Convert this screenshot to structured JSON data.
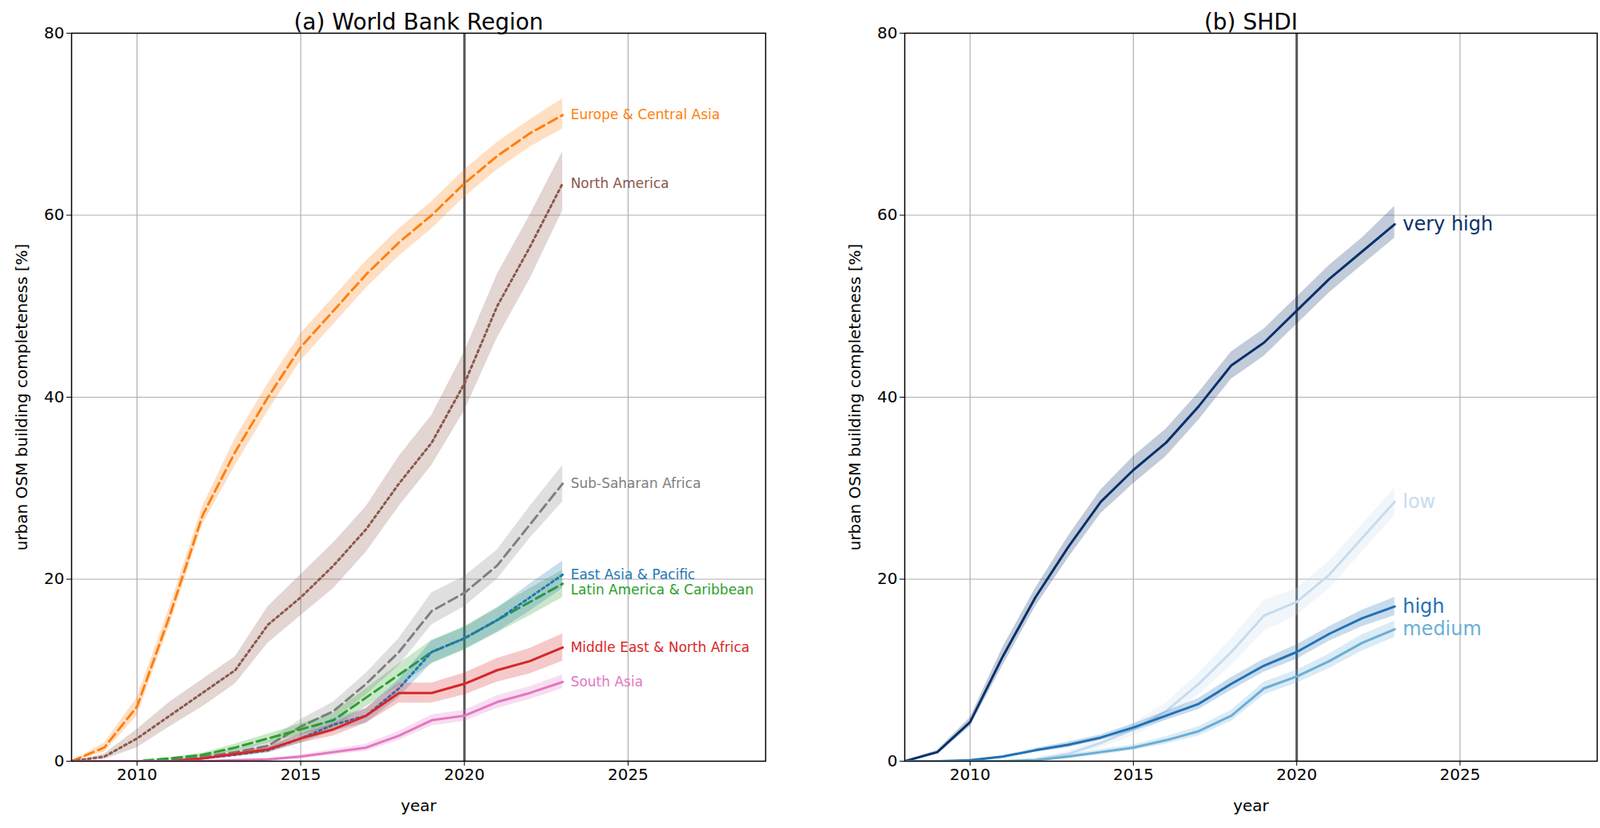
{
  "chart_data": [
    {
      "type": "line",
      "title": "(a) World Bank Region",
      "x_label": "year",
      "y_label": "urban OSM building completeness [%]",
      "x": [
        2008,
        2009,
        2010,
        2011,
        2012,
        2013,
        2014,
        2015,
        2016,
        2017,
        2018,
        2019,
        2020,
        2021,
        2022,
        2023
      ],
      "xlim": [
        2008,
        2029.2
      ],
      "ylim": [
        0,
        80
      ],
      "xticks": [
        2010,
        2015,
        2020,
        2025
      ],
      "yticks": [
        0,
        20,
        40,
        60,
        80
      ],
      "grid": true,
      "reference_line_x": 2020,
      "series": [
        {
          "name": "Europe & Central Asia",
          "color": "#ff7f0e",
          "line_style": "dashed",
          "values": [
            0,
            1.5,
            6,
            16,
            27,
            34,
            40,
            45.5,
            49.5,
            53.5,
            57,
            60,
            63.5,
            66.5,
            69,
            71
          ],
          "lower": [
            0,
            1,
            5,
            15,
            26,
            32.5,
            38.5,
            44,
            48,
            52,
            55.5,
            58.5,
            62,
            65,
            67.5,
            69.5
          ],
          "upper": [
            0,
            2,
            7,
            17,
            28,
            35.5,
            41.5,
            47,
            51,
            55,
            58.5,
            61.5,
            65,
            68,
            70.5,
            72.8
          ]
        },
        {
          "name": "North America",
          "color": "#8c564b",
          "line_style": "dotted",
          "values": [
            0,
            0.5,
            2.5,
            5,
            7.5,
            10,
            15,
            18,
            21.5,
            25.5,
            30.5,
            35,
            41.5,
            50,
            56.5,
            63.5
          ],
          "lower": [
            0,
            0.2,
            1.5,
            3.8,
            6,
            8.5,
            13,
            16,
            19,
            23,
            28,
            32.5,
            38.5,
            46.5,
            53,
            60.5
          ],
          "upper": [
            0,
            0.8,
            3.5,
            6.5,
            9,
            11.5,
            17,
            20.5,
            24,
            28,
            33.5,
            38,
            45,
            53.5,
            60,
            67
          ]
        },
        {
          "name": "Sub-Saharan Africa",
          "color": "#7f7f7f",
          "line_style": "dashed",
          "values": [
            0,
            0,
            0,
            0.1,
            0.5,
            1,
            1.7,
            3.8,
            5.5,
            8.5,
            12,
            16.5,
            18.5,
            21.5,
            26,
            30.5
          ],
          "lower": [
            0,
            0,
            0,
            0,
            0.3,
            0.7,
            1.2,
            3,
            4.5,
            7.3,
            10.5,
            15,
            17,
            20,
            24.5,
            28.5
          ],
          "upper": [
            0,
            0,
            0,
            0.2,
            0.7,
            1.3,
            2.2,
            4.6,
            6.5,
            9.7,
            13.5,
            18.5,
            20.3,
            23.2,
            28,
            32.5
          ]
        },
        {
          "name": "Latin America & Caribbean",
          "color": "#2ca02c",
          "line_style": "dashed",
          "values": [
            0,
            0,
            0,
            0.3,
            0.7,
            1.5,
            2.5,
            3.5,
            4.5,
            7,
            9.5,
            12,
            13.5,
            15.5,
            17.5,
            19.5
          ],
          "lower": [
            0,
            0,
            0,
            0.2,
            0.5,
            1.1,
            2,
            2.9,
            3.7,
            6,
            8.3,
            10.7,
            12.2,
            14.1,
            16,
            18
          ],
          "upper": [
            0,
            0,
            0,
            0.4,
            0.9,
            1.9,
            3,
            4.1,
            5.3,
            8,
            10.7,
            13.3,
            14.8,
            16.9,
            19,
            21
          ]
        },
        {
          "name": "East Asia & Pacific",
          "color": "#1f77b4",
          "line_style": "dotted",
          "values": [
            0,
            0,
            0,
            0,
            0.3,
            0.7,
            1.2,
            2.5,
            4,
            5,
            8,
            12,
            13.5,
            15.5,
            18,
            20.5
          ],
          "lower": [
            0,
            0,
            0,
            0,
            0.2,
            0.5,
            0.9,
            2,
            3.3,
            4.2,
            7,
            10.8,
            12.3,
            14.2,
            16.5,
            19
          ],
          "upper": [
            0,
            0,
            0,
            0,
            0.4,
            0.9,
            1.5,
            3,
            4.7,
            5.8,
            9,
            13.2,
            14.7,
            16.8,
            19.5,
            22
          ]
        },
        {
          "name": "Middle East & North Africa",
          "color": "#d62728",
          "line_style": "solid",
          "values": [
            0,
            0,
            0,
            0,
            0.3,
            0.8,
            1.3,
            2.5,
            3.5,
            5,
            7.5,
            7.5,
            8.5,
            10,
            11,
            12.5
          ],
          "lower": [
            0,
            0,
            0,
            0,
            0.2,
            0.6,
            1,
            2,
            2.8,
            4.2,
            6.4,
            6.4,
            7.3,
            8.7,
            9.6,
            11
          ],
          "upper": [
            0,
            0,
            0,
            0,
            0.4,
            1,
            1.6,
            3,
            4.2,
            5.8,
            8.6,
            8.6,
            9.7,
            11.3,
            12.4,
            14
          ]
        },
        {
          "name": "South Asia",
          "color": "#e377c2",
          "line_style": "solid",
          "values": [
            0,
            0,
            0,
            0,
            0,
            0.1,
            0.2,
            0.5,
            1,
            1.5,
            2.8,
            4.5,
            5,
            6.5,
            7.5,
            8.7
          ],
          "lower": [
            0,
            0,
            0,
            0,
            0,
            0,
            0.1,
            0.3,
            0.7,
            1.1,
            2.3,
            3.9,
            4.4,
            5.8,
            6.8,
            8
          ],
          "upper": [
            0,
            0,
            0,
            0,
            0,
            0.2,
            0.3,
            0.7,
            1.3,
            1.9,
            3.3,
            5.1,
            5.6,
            7.2,
            8.2,
            9.5
          ]
        }
      ]
    },
    {
      "type": "line",
      "title": "(b) SHDI",
      "x_label": "year",
      "y_label": "urban OSM building completeness [%]",
      "x": [
        2008,
        2009,
        2010,
        2011,
        2012,
        2013,
        2014,
        2015,
        2016,
        2017,
        2018,
        2019,
        2020,
        2021,
        2022,
        2023
      ],
      "xlim": [
        2008,
        2029.2
      ],
      "ylim": [
        0,
        80
      ],
      "xticks": [
        2010,
        2015,
        2020,
        2025
      ],
      "yticks": [
        0,
        20,
        40,
        60,
        80
      ],
      "grid": true,
      "reference_line_x": 2020,
      "series": [
        {
          "name": "very high",
          "color": "#08306b",
          "line_style": "solid",
          "values": [
            0,
            1,
            4.3,
            11.5,
            18,
            23.5,
            28.5,
            32,
            35,
            39,
            43.5,
            46,
            49.5,
            53,
            56,
            59
          ],
          "lower": [
            0,
            0.8,
            3.8,
            10.5,
            17,
            22.3,
            27.2,
            30.5,
            33.5,
            37.5,
            42,
            44.5,
            48,
            51.5,
            54.5,
            57.5
          ],
          "upper": [
            0,
            1.2,
            4.8,
            12.5,
            19,
            24.7,
            29.8,
            33.5,
            36.5,
            40.5,
            45,
            47.5,
            51,
            54.5,
            57.5,
            61
          ]
        },
        {
          "name": "low",
          "color": "#c6dbef",
          "line_style": "solid",
          "values": [
            0,
            0,
            0,
            0,
            0.2,
            0.8,
            2,
            3.5,
            5.5,
            8.5,
            12,
            16,
            17.5,
            20.5,
            24.5,
            28.5
          ],
          "lower": [
            0,
            0,
            0,
            0,
            0.1,
            0.5,
            1.5,
            2.8,
            4.6,
            7.3,
            10.5,
            14.3,
            16,
            19,
            23,
            27
          ],
          "upper": [
            0,
            0,
            0,
            0,
            0.3,
            1.1,
            2.5,
            4.2,
            6.4,
            9.7,
            13.5,
            17.7,
            19,
            22,
            26,
            30
          ]
        },
        {
          "name": "high",
          "color": "#2171b5",
          "line_style": "solid",
          "values": [
            0,
            0,
            0.1,
            0.5,
            1.2,
            1.8,
            2.6,
            3.7,
            5,
            6.3,
            8.5,
            10.5,
            12,
            14,
            15.7,
            17
          ],
          "lower": [
            0,
            0,
            0.05,
            0.4,
            1,
            1.5,
            2.3,
            3.3,
            4.5,
            5.7,
            7.8,
            9.8,
            11.2,
            13.2,
            14.8,
            16
          ],
          "upper": [
            0,
            0,
            0.15,
            0.6,
            1.4,
            2.1,
            2.9,
            4.1,
            5.5,
            6.9,
            9.2,
            11.2,
            12.8,
            14.8,
            16.6,
            18
          ]
        },
        {
          "name": "medium",
          "color": "#6baed6",
          "line_style": "solid",
          "values": [
            0,
            0,
            0,
            0,
            0.1,
            0.5,
            1,
            1.5,
            2.3,
            3.3,
            5,
            8,
            9.3,
            11,
            13,
            14.5
          ],
          "lower": [
            0,
            0,
            0,
            0,
            0.05,
            0.3,
            0.7,
            1.2,
            1.9,
            2.8,
            4.4,
            7.3,
            8.6,
            10.2,
            12.1,
            13.6
          ],
          "upper": [
            0,
            0,
            0,
            0,
            0.15,
            0.7,
            1.3,
            1.8,
            2.7,
            3.8,
            5.6,
            8.7,
            10,
            11.8,
            13.9,
            15.4
          ]
        }
      ]
    }
  ]
}
